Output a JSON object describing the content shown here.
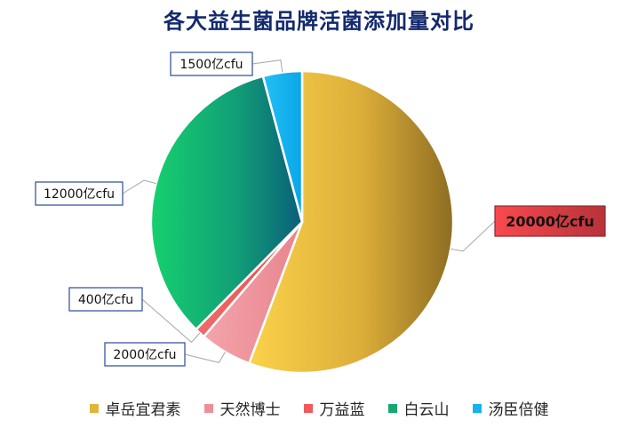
{
  "chart_data": {
    "type": "pie",
    "title": "各大益生菌品牌活菌添加量对比",
    "unit": "亿cfu",
    "categories": [
      "卓岳宜君素",
      "天然博士",
      "万益蓝",
      "白云山",
      "汤臣倍健"
    ],
    "values": [
      20000,
      2000,
      400,
      12000,
      1500
    ],
    "data_labels": [
      "20000亿cfu",
      "2000亿cfu",
      "400亿cfu",
      "12000亿cfu",
      "1500亿cfu"
    ],
    "legend": "bottom",
    "colors": [
      "#e3b43a",
      "#ee8f98",
      "#f05a5a",
      "#16a870",
      "#16b4ef"
    ],
    "highlight": {
      "index": 0,
      "fill": "#e8444d"
    }
  }
}
